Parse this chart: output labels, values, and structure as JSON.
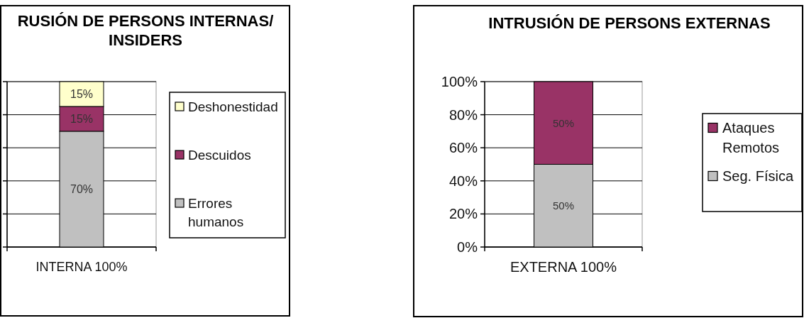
{
  "chart_data": [
    {
      "type": "bar",
      "title": "RUSIÓN DE PERSONS INTERNAS/ INSIDERS",
      "categories": [
        "INTERNA 100%"
      ],
      "stacked": true,
      "series": [
        {
          "name": "Errores humanos",
          "color": "#c0c0c0",
          "values": [
            70
          ],
          "value_labels": [
            "70%"
          ]
        },
        {
          "name": "Descuidos",
          "color": "#993366",
          "values": [
            15
          ],
          "value_labels": [
            "15%"
          ]
        },
        {
          "name": "Deshonestidad",
          "color": "#ffffcc",
          "values": [
            15
          ],
          "value_labels": [
            "15%"
          ]
        }
      ],
      "ylim": [
        0,
        100
      ],
      "yticks": [
        {
          "value": 0,
          "label": null
        },
        {
          "value": 20,
          "label": null
        },
        {
          "value": 40,
          "label": null
        },
        {
          "value": 60,
          "label": null
        },
        {
          "value": 80,
          "label": null
        },
        {
          "value": 100,
          "label": null
        }
      ],
      "tick_labels": "x",
      "grid": "y",
      "legend": "right"
    },
    {
      "type": "bar",
      "title": "INTRUSIÓN DE PERSONS EXTERNAS",
      "categories": [
        "EXTERNA 100%"
      ],
      "stacked": true,
      "series": [
        {
          "name": "Seg. Física",
          "color": "#c0c0c0",
          "values": [
            50
          ],
          "value_labels": [
            "50%"
          ]
        },
        {
          "name": "Ataques Remotos",
          "color": "#993366",
          "values": [
            50
          ],
          "value_labels": [
            "50%"
          ]
        }
      ],
      "ylim": [
        0,
        100
      ],
      "yticks": [
        {
          "value": 0,
          "label": "0%"
        },
        {
          "value": 20,
          "label": "20%"
        },
        {
          "value": 40,
          "label": "40%"
        },
        {
          "value": 60,
          "label": "60%"
        },
        {
          "value": 80,
          "label": "80%"
        },
        {
          "value": 100,
          "label": "100%"
        }
      ],
      "grid": "y",
      "legend": "right"
    }
  ]
}
